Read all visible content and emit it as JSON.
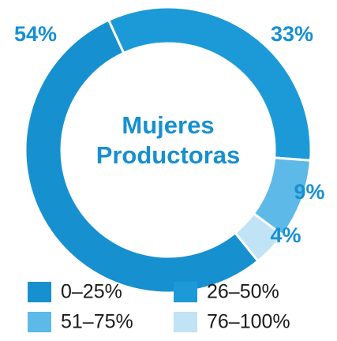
{
  "chart_data": {
    "type": "pie",
    "title": "Mujeres Productoras",
    "categories": [
      "0–25%",
      "26–50%",
      "51–75%",
      "76–100%"
    ],
    "values": [
      54,
      33,
      9,
      4
    ],
    "value_labels": [
      "54%",
      "33%",
      "9%",
      "4%"
    ],
    "colors": [
      "#1790d0",
      "#1c9ad7",
      "#5db9e7",
      "#c0e3f5"
    ],
    "donut": true
  }
}
